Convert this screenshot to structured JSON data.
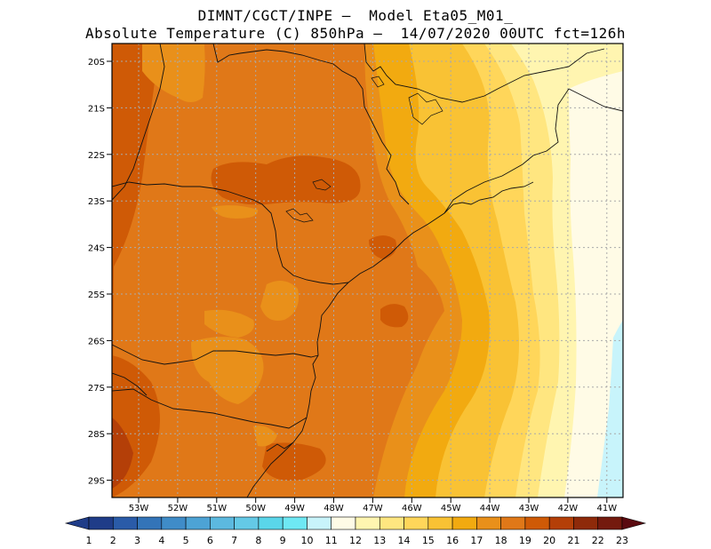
{
  "title_line1": "DIMNT/CGCT/INPE –  Model Eta05_M01_",
  "title_line2": "Absolute Temperature (C) 850hPa –  14/07/2020 00UTC fct=126h",
  "map": {
    "lat_labels": [
      "20S",
      "21S",
      "22S",
      "23S",
      "24S",
      "25S",
      "26S",
      "27S",
      "28S",
      "29S"
    ],
    "lon_labels": [
      "53W",
      "52W",
      "51W",
      "50W",
      "49W",
      "48W",
      "47W",
      "46W",
      "45W",
      "44W",
      "43W",
      "42W",
      "41W"
    ]
  },
  "colorbar": {
    "labels": [
      "1",
      "2",
      "3",
      "4",
      "5",
      "6",
      "7",
      "8",
      "9",
      "10",
      "11",
      "12",
      "13",
      "14",
      "15",
      "16",
      "17",
      "18",
      "19",
      "20",
      "21",
      "22",
      "23"
    ],
    "colors": [
      "#1f3c88",
      "#2a5ba8",
      "#3374b8",
      "#3f8cc8",
      "#4da3d5",
      "#5cb9df",
      "#64c9e6",
      "#5ad6ea",
      "#6ee8f4",
      "#c8f4fb",
      "#fffbe6",
      "#fff5b0",
      "#ffe680",
      "#ffd65a",
      "#f9c234",
      "#f2aa10",
      "#e9901a",
      "#e07818",
      "#cf5a06",
      "#b43f08",
      "#8e2a0a",
      "#741a0e",
      "#5a0a10"
    ]
  }
}
